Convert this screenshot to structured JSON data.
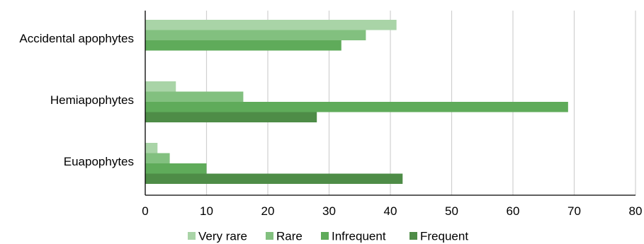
{
  "chart_data": {
    "type": "bar",
    "orientation": "horizontal",
    "categories": [
      "Accidental apophytes",
      "Hemiapophytes",
      "Euapophytes"
    ],
    "series": [
      {
        "name": "Very rare",
        "color": "#a9d4a7",
        "values": [
          41,
          5,
          2
        ]
      },
      {
        "name": "Rare",
        "color": "#82c07f",
        "values": [
          36,
          16,
          4
        ]
      },
      {
        "name": "Infrequent",
        "color": "#5fab5a",
        "values": [
          32,
          69,
          10
        ]
      },
      {
        "name": "Frequent",
        "color": "#4e8c47",
        "values": [
          null,
          28,
          42
        ]
      }
    ],
    "xlim": [
      0,
      80
    ],
    "xticks": [
      0,
      10,
      20,
      30,
      40,
      50,
      60,
      70,
      80
    ],
    "grid": "vertical",
    "legend": "bottom"
  }
}
